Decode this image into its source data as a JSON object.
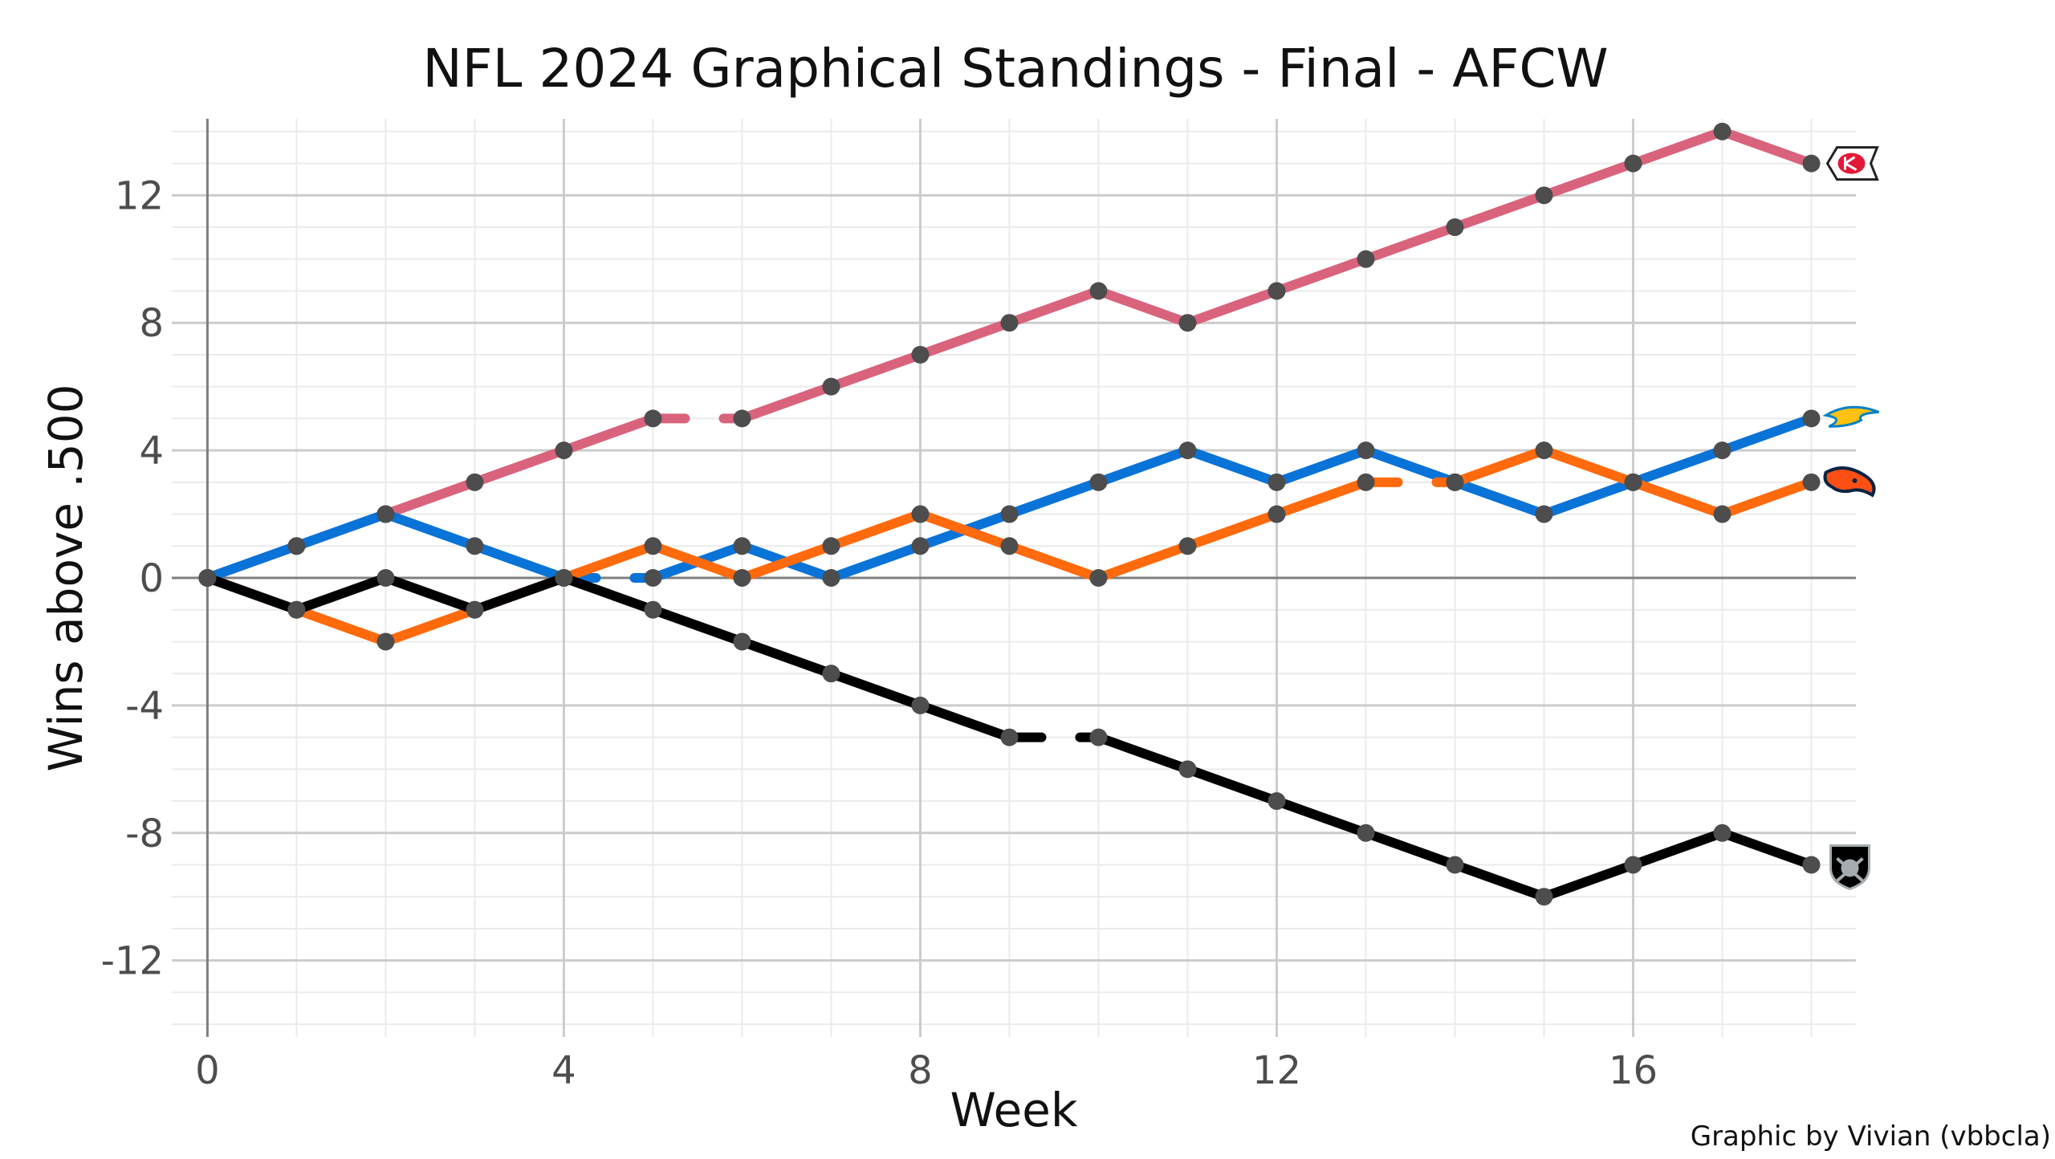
{
  "chart_data": {
    "type": "line",
    "title": "NFL 2024 Graphical Standings - Final - AFCW",
    "xlabel": "Week",
    "ylabel": "Wins above .500",
    "caption": "Graphic by Vivian (vbbcla)",
    "xlim": [
      -0.4,
      18.5
    ],
    "ylim": [
      -14.4,
      14.4
    ],
    "x_ticks": [
      0,
      4,
      8,
      12,
      16
    ],
    "x_tick_labels": [
      "0",
      "4",
      "8",
      "12",
      "16"
    ],
    "y_ticks": [
      12,
      8,
      4,
      0,
      -4,
      -8,
      -12
    ],
    "y_tick_labels": [
      "12",
      "8",
      "4",
      "0",
      "-4",
      "-8",
      "-12"
    ],
    "grid": true,
    "legend": "none (team logos at line ends)",
    "series": [
      {
        "team": "Chiefs",
        "color": "#D9637D",
        "logo": "chiefs-logo",
        "bye_week": 6,
        "points": [
          [
            0,
            0
          ],
          [
            1,
            1
          ],
          [
            2,
            2
          ],
          [
            3,
            3
          ],
          [
            4,
            4
          ],
          [
            5,
            5
          ],
          [
            6,
            5
          ],
          [
            7,
            6
          ],
          [
            8,
            7
          ],
          [
            9,
            8
          ],
          [
            10,
            9
          ],
          [
            11,
            8
          ],
          [
            12,
            9
          ],
          [
            13,
            10
          ],
          [
            14,
            11
          ],
          [
            15,
            12
          ],
          [
            16,
            13
          ],
          [
            17,
            14
          ],
          [
            18,
            13
          ]
        ]
      },
      {
        "team": "Chargers",
        "color": "#0A73D7",
        "logo": "chargers-logo",
        "bye_week": 5,
        "points": [
          [
            0,
            0
          ],
          [
            1,
            1
          ],
          [
            2,
            2
          ],
          [
            3,
            1
          ],
          [
            4,
            0
          ],
          [
            5,
            0
          ],
          [
            6,
            1
          ],
          [
            7,
            0
          ],
          [
            8,
            1
          ],
          [
            9,
            2
          ],
          [
            10,
            3
          ],
          [
            11,
            4
          ],
          [
            12,
            3
          ],
          [
            13,
            4
          ],
          [
            14,
            3
          ],
          [
            15,
            2
          ],
          [
            16,
            3
          ],
          [
            17,
            4
          ],
          [
            18,
            5
          ]
        ]
      },
      {
        "team": "Broncos",
        "color": "#FF6A0D",
        "logo": "broncos-logo",
        "bye_week": 14,
        "points": [
          [
            0,
            0
          ],
          [
            1,
            -1
          ],
          [
            2,
            -2
          ],
          [
            3,
            -1
          ],
          [
            4,
            0
          ],
          [
            5,
            1
          ],
          [
            6,
            0
          ],
          [
            7,
            1
          ],
          [
            8,
            2
          ],
          [
            9,
            1
          ],
          [
            10,
            0
          ],
          [
            11,
            1
          ],
          [
            12,
            2
          ],
          [
            13,
            3
          ],
          [
            14,
            3
          ],
          [
            15,
            4
          ],
          [
            16,
            3
          ],
          [
            17,
            2
          ],
          [
            18,
            3
          ]
        ]
      },
      {
        "team": "Raiders",
        "color": "#000000",
        "logo": "raiders-logo",
        "bye_week": 10,
        "points": [
          [
            0,
            0
          ],
          [
            1,
            -1
          ],
          [
            2,
            0
          ],
          [
            3,
            -1
          ],
          [
            4,
            0
          ],
          [
            5,
            -1
          ],
          [
            6,
            -2
          ],
          [
            7,
            -3
          ],
          [
            8,
            -4
          ],
          [
            9,
            -5
          ],
          [
            10,
            -5
          ],
          [
            11,
            -6
          ],
          [
            12,
            -7
          ],
          [
            13,
            -8
          ],
          [
            14,
            -9
          ],
          [
            15,
            -10
          ],
          [
            16,
            -9
          ],
          [
            17,
            -8
          ],
          [
            18,
            -9
          ]
        ]
      }
    ]
  }
}
